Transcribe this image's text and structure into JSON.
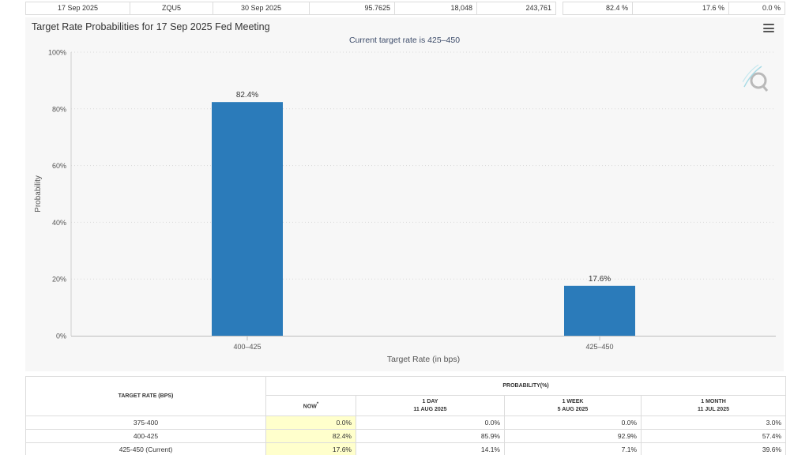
{
  "top_row": {
    "cells": [
      "17 Sep 2025",
      "ZQU5",
      "30 Sep 2025",
      "95.7625",
      "18,048",
      "243,761",
      "82.4 %",
      "17.6 %",
      "0.0 %"
    ]
  },
  "chart": {
    "title": "Target Rate Probabilities for 17 Sep 2025 Fed Meeting",
    "subtitle": "Current target rate is 425–450",
    "menu_icon": "hamburger-menu-icon",
    "watermark_icon": "q-logo-icon",
    "bar_color": "#2b7bba"
  },
  "chart_data": {
    "type": "bar",
    "title": "Target Rate Probabilities for 17 Sep 2025 Fed Meeting",
    "subtitle": "Current target rate is 425–450",
    "categories": [
      "400–425",
      "425–450"
    ],
    "values": [
      82.4,
      17.6
    ],
    "data_labels": [
      "82.4%",
      "17.6%"
    ],
    "xlabel": "Target Rate (in bps)",
    "ylabel": "Probability",
    "ylim": [
      0,
      100
    ],
    "yticks": [
      "0%",
      "20%",
      "40%",
      "60%",
      "80%",
      "100%"
    ],
    "grid": true,
    "legend": "none"
  },
  "table": {
    "target_header": "TARGET RATE (BPS)",
    "prob_header": "PROBABILITY(%)",
    "now_label": "NOW",
    "now_mark": "*",
    "columns": [
      {
        "label": "1 DAY",
        "date": "11 AUG 2025"
      },
      {
        "label": "1 WEEK",
        "date": "5 AUG 2025"
      },
      {
        "label": "1 MONTH",
        "date": "11 JUL 2025"
      }
    ],
    "rows": [
      {
        "rate": "375-400",
        "now": "0.0%",
        "day": "0.0%",
        "week": "0.0%",
        "month": "3.0%"
      },
      {
        "rate": "400-425",
        "now": "82.4%",
        "day": "85.9%",
        "week": "92.9%",
        "month": "57.4%"
      },
      {
        "rate": "425-450 (Current)",
        "now": "17.6%",
        "day": "14.1%",
        "week": "7.1%",
        "month": "39.6%"
      }
    ]
  }
}
